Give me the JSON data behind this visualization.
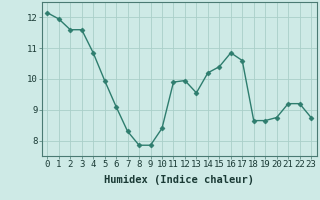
{
  "x": [
    0,
    1,
    2,
    3,
    4,
    5,
    6,
    7,
    8,
    9,
    10,
    11,
    12,
    13,
    14,
    15,
    16,
    17,
    18,
    19,
    20,
    21,
    22,
    23
  ],
  "y": [
    12.15,
    11.95,
    11.6,
    11.6,
    10.85,
    9.95,
    9.1,
    8.3,
    7.85,
    7.85,
    8.4,
    9.9,
    9.95,
    9.55,
    10.2,
    10.4,
    10.85,
    10.6,
    8.65,
    8.65,
    8.75,
    9.2,
    9.2,
    8.75
  ],
  "line_color": "#2e7d6e",
  "marker": "D",
  "marker_size": 2.5,
  "bg_color": "#ceeae6",
  "grid_color": "#aacfc9",
  "xlabel": "Humidex (Indice chaleur)",
  "xlim": [
    -0.5,
    23.5
  ],
  "ylim": [
    7.5,
    12.5
  ],
  "yticks": [
    8,
    9,
    10,
    11,
    12
  ],
  "xticks": [
    0,
    1,
    2,
    3,
    4,
    5,
    6,
    7,
    8,
    9,
    10,
    11,
    12,
    13,
    14,
    15,
    16,
    17,
    18,
    19,
    20,
    21,
    22,
    23
  ],
  "tick_label_fontsize": 6.5,
  "xlabel_fontsize": 7.5,
  "spine_color": "#4a7a73",
  "line_width": 1.0
}
